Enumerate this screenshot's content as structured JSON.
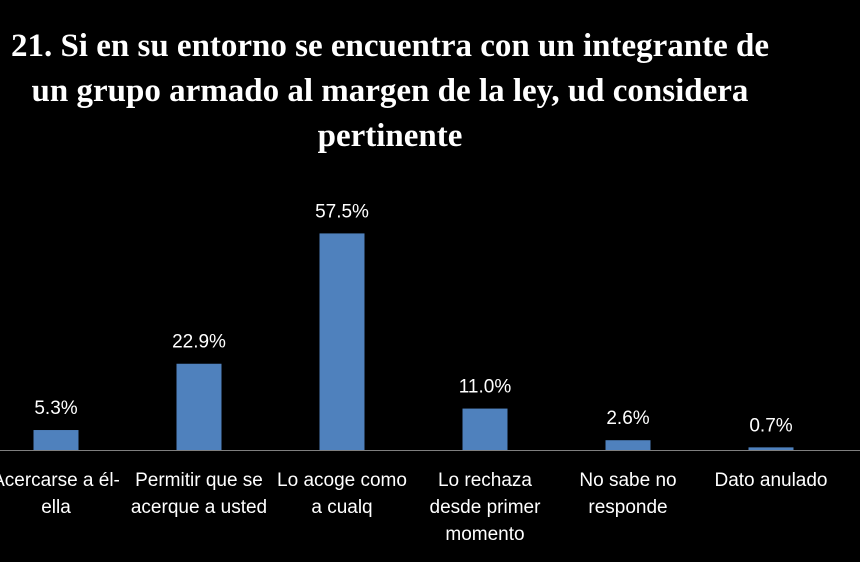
{
  "chart_data": {
    "type": "bar",
    "title": "21. Si en su entorno se encuentra con un integrante de un grupo armado al margen de la ley, ud considera pertinente",
    "categories": [
      "Acercarse a él-ella",
      "Permitir que se acerque a usted",
      "Lo acoge como a cualq",
      "Lo rechaza desde primer momento",
      "No sabe no responde",
      "Dato anulado"
    ],
    "values": [
      5.3,
      22.9,
      57.5,
      11.0,
      2.6,
      0.7
    ],
    "value_labels": [
      "5.3%",
      "22.9%",
      "57.5%",
      "11.0%",
      "2.6%",
      "0.7%"
    ],
    "color": "#4f81bd",
    "ylim": [
      0,
      60
    ]
  }
}
